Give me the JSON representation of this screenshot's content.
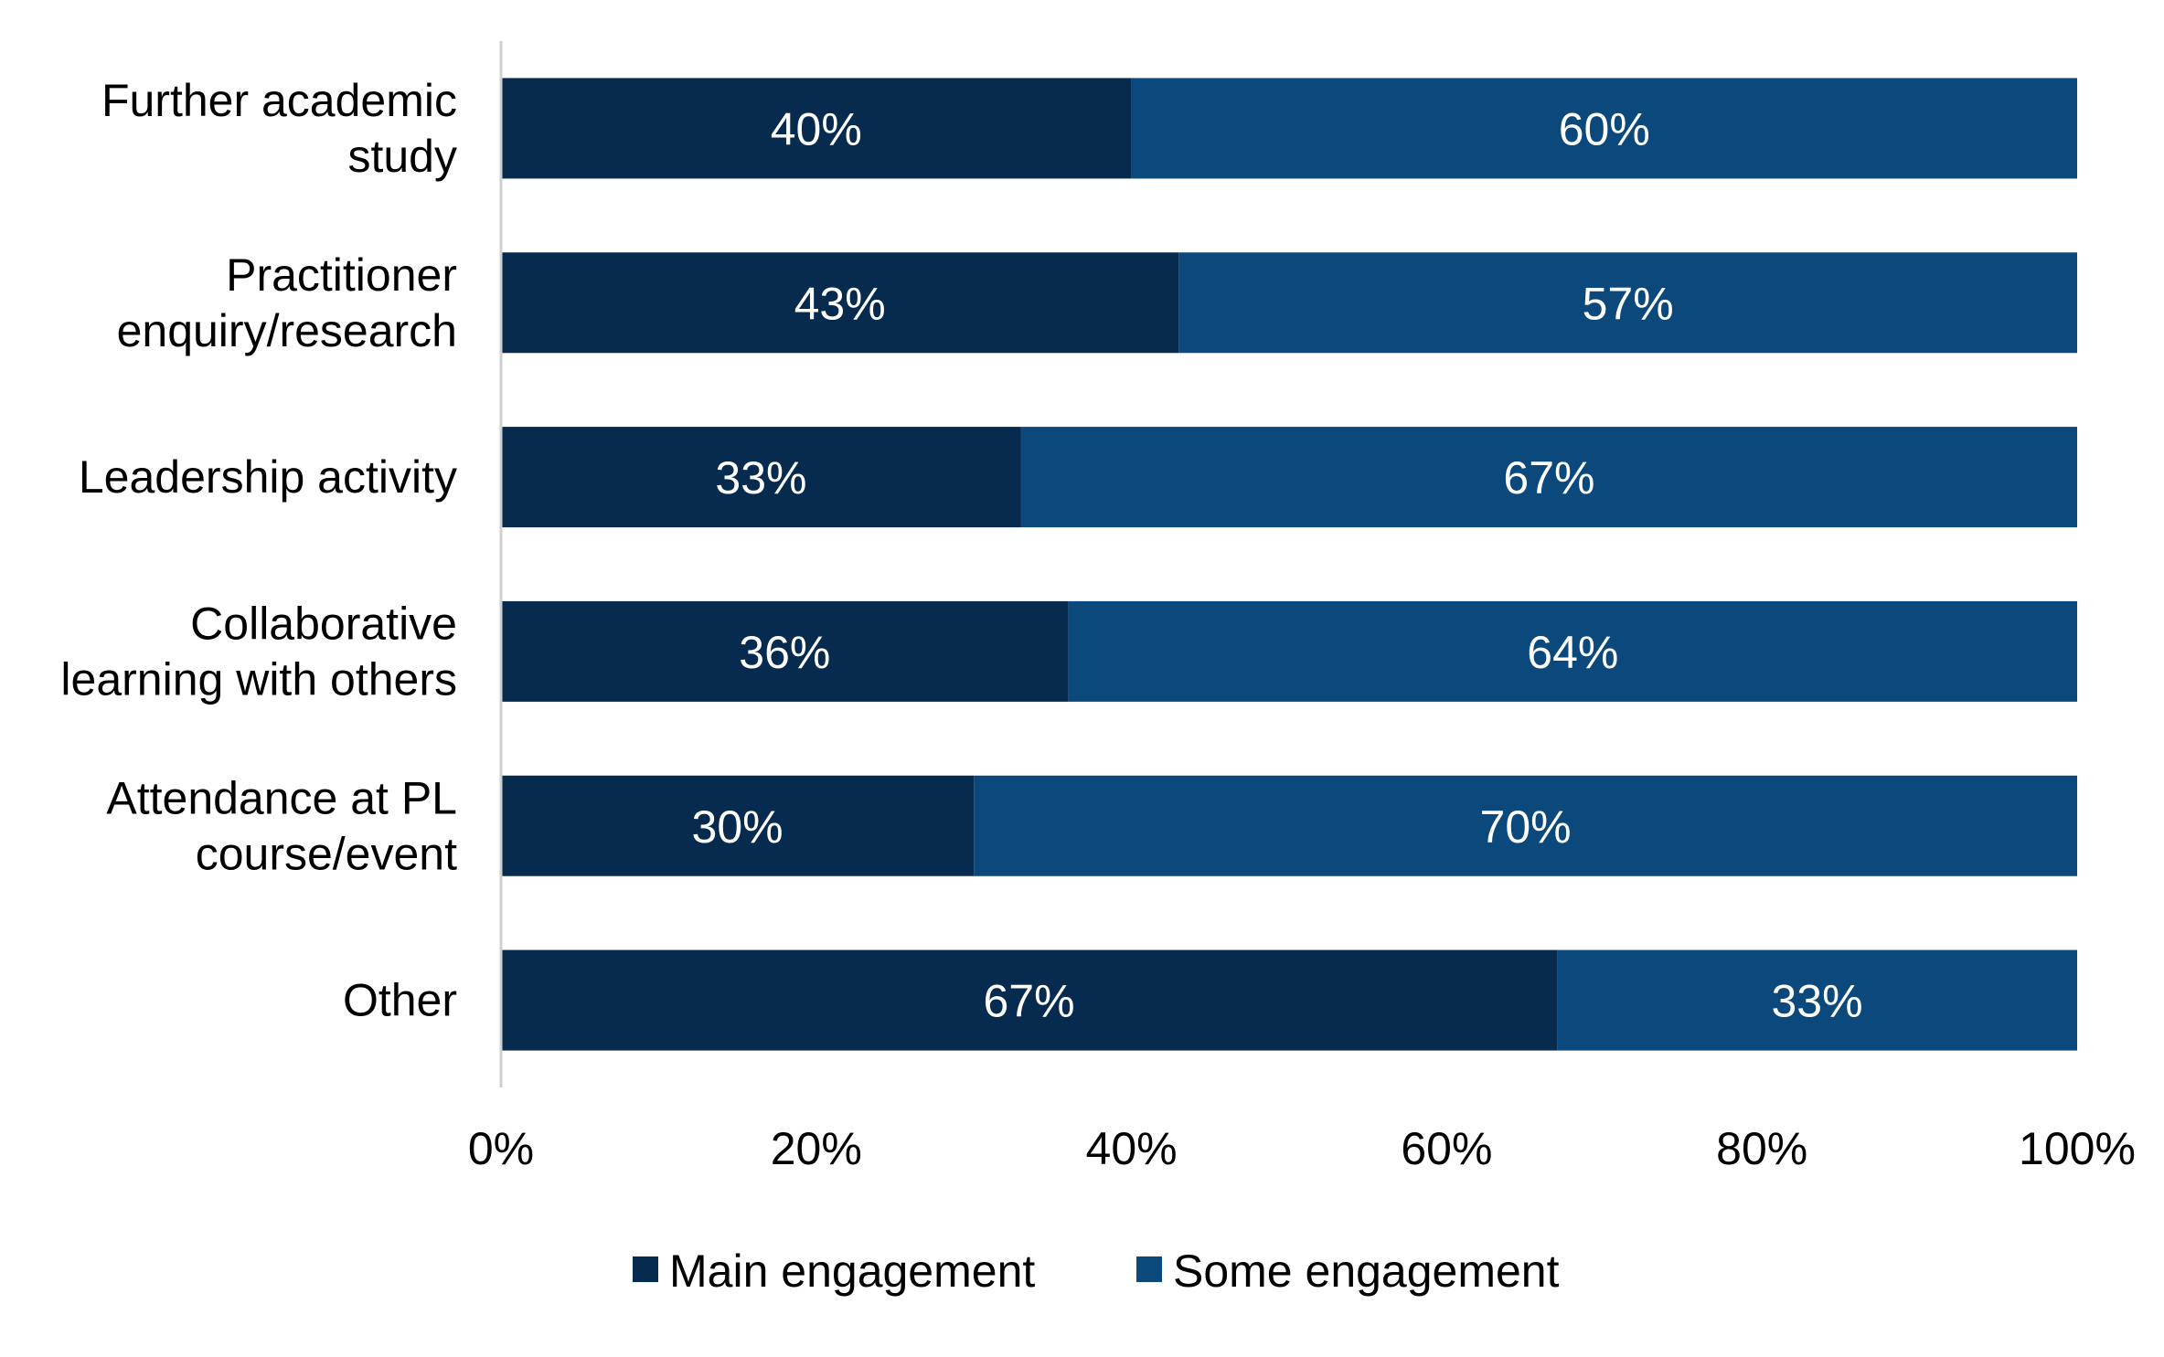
{
  "colors": {
    "main": "#062b4f",
    "some": "#0b487b",
    "axis": "#d0d0d0",
    "background": "#ffffff"
  },
  "chart_data": {
    "type": "bar",
    "orientation": "horizontal",
    "stacked": true,
    "categories": [
      "Further academic study",
      "Practitioner enquiry/research",
      "Leadership activity",
      "Collaborative learning with others",
      "Attendance at PL course/event",
      "Other"
    ],
    "category_label_lines": [
      [
        "Further academic",
        "study"
      ],
      [
        "Practitioner",
        "enquiry/research"
      ],
      [
        "Leadership activity"
      ],
      [
        "Collaborative",
        "learning with others"
      ],
      [
        "Attendance at PL",
        "course/event"
      ],
      [
        "Other"
      ]
    ],
    "series": [
      {
        "name": "Main engagement",
        "values": [
          40,
          43,
          33,
          36,
          30,
          67
        ],
        "labels": [
          "40%",
          "43%",
          "33%",
          "36%",
          "30%",
          "67%"
        ]
      },
      {
        "name": "Some engagement",
        "values": [
          60,
          57,
          67,
          64,
          70,
          33
        ],
        "labels": [
          "60%",
          "57%",
          "67%",
          "64%",
          "70%",
          "33%"
        ]
      }
    ],
    "xlim": [
      0,
      100
    ],
    "x_ticks": [
      "0%",
      "20%",
      "40%",
      "60%",
      "80%",
      "100%"
    ],
    "grid": false,
    "legend_position": "bottom"
  }
}
